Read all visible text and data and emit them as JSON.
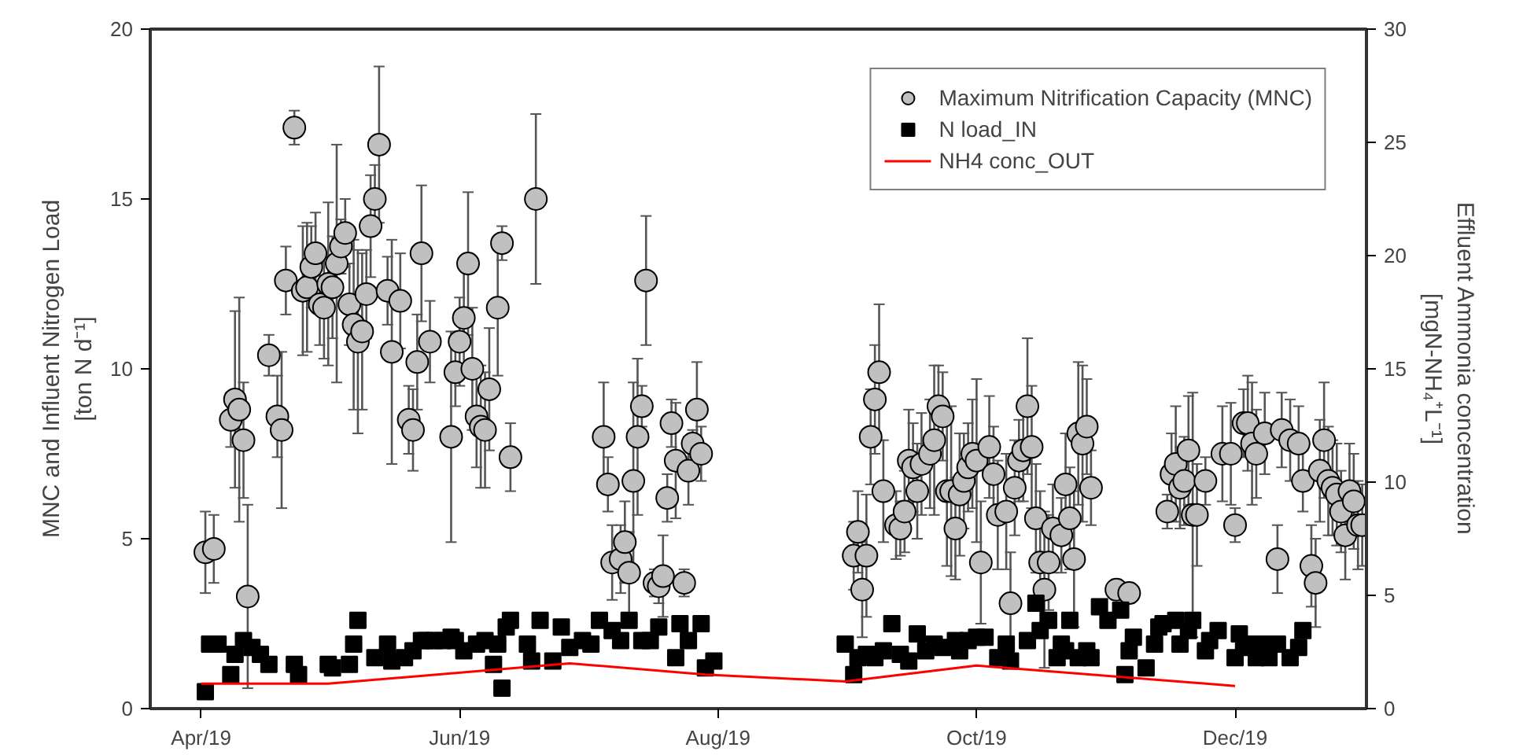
{
  "chart_data": {
    "type": "scatter",
    "ylabel": "MNC and Influent Nitrogen Load\n[ton N d⁻¹]",
    "y2label": "Effluent Ammonia concentration\n[mgN-NH₄⁺L⁻¹]",
    "xlim": [
      "2019-03-20",
      "2020-01-01"
    ],
    "xticks": [
      {
        "value": "2019-04-01",
        "label": "Apr/19"
      },
      {
        "value": "2019-06-01",
        "label": "Jun/19"
      },
      {
        "value": "2019-08-01",
        "label": "Aug/19"
      },
      {
        "value": "2019-10-01",
        "label": "Oct/19"
      },
      {
        "value": "2019-12-01",
        "label": "Dec/19"
      }
    ],
    "ylim": [
      0,
      20
    ],
    "yticks": [
      0,
      5,
      10,
      15,
      20
    ],
    "y2lim": [
      0,
      30
    ],
    "y2ticks": [
      0,
      5,
      10,
      15,
      20,
      25,
      30
    ],
    "grid": false,
    "legend": "top right",
    "series": [
      {
        "name": "Maximum Nitrification Capacity (MNC)",
        "marker": "circle",
        "color": "#c0c0c0",
        "x": [
          "2019-04-02",
          "2019-04-04",
          "2019-04-08",
          "2019-04-09",
          "2019-04-10",
          "2019-04-11",
          "2019-04-12",
          "2019-04-17",
          "2019-04-19",
          "2019-04-20",
          "2019-04-21",
          "2019-04-23",
          "2019-04-25",
          "2019-04-26",
          "2019-04-27",
          "2019-04-28",
          "2019-04-29",
          "2019-04-30",
          "2019-05-01",
          "2019-05-02",
          "2019-05-03",
          "2019-05-04",
          "2019-05-05",
          "2019-05-06",
          "2019-05-07",
          "2019-05-08",
          "2019-05-09",
          "2019-05-10",
          "2019-05-11",
          "2019-05-12",
          "2019-05-13",
          "2019-05-15",
          "2019-05-16",
          "2019-05-18",
          "2019-05-20",
          "2019-05-21",
          "2019-05-22",
          "2019-05-23",
          "2019-05-25",
          "2019-05-30",
          "2019-05-31",
          "2019-06-01",
          "2019-06-02",
          "2019-06-03",
          "2019-06-04",
          "2019-06-05",
          "2019-06-06",
          "2019-06-07",
          "2019-06-08",
          "2019-06-10",
          "2019-06-11",
          "2019-06-13",
          "2019-06-19",
          "2019-07-05",
          "2019-07-06",
          "2019-07-07",
          "2019-07-09",
          "2019-07-10",
          "2019-07-11",
          "2019-07-12",
          "2019-07-13",
          "2019-07-14",
          "2019-07-15",
          "2019-07-17",
          "2019-07-18",
          "2019-07-19",
          "2019-07-20",
          "2019-07-21",
          "2019-07-22",
          "2019-07-24",
          "2019-07-25",
          "2019-07-26",
          "2019-07-27",
          "2019-07-28",
          "2019-09-02",
          "2019-09-03",
          "2019-09-04",
          "2019-09-05",
          "2019-09-06",
          "2019-09-07",
          "2019-09-08",
          "2019-09-09",
          "2019-09-12",
          "2019-09-13",
          "2019-09-14",
          "2019-09-15",
          "2019-09-16",
          "2019-09-17",
          "2019-09-18",
          "2019-09-20",
          "2019-09-21",
          "2019-09-22",
          "2019-09-23",
          "2019-09-24",
          "2019-09-25",
          "2019-09-26",
          "2019-09-27",
          "2019-09-28",
          "2019-09-29",
          "2019-09-30",
          "2019-10-01",
          "2019-10-02",
          "2019-10-04",
          "2019-10-05",
          "2019-10-06",
          "2019-10-08",
          "2019-10-09",
          "2019-10-10",
          "2019-10-11",
          "2019-10-12",
          "2019-10-13",
          "2019-10-14",
          "2019-10-15",
          "2019-10-16",
          "2019-10-17",
          "2019-10-18",
          "2019-10-19",
          "2019-10-21",
          "2019-10-22",
          "2019-10-23",
          "2019-10-24",
          "2019-10-25",
          "2019-10-26",
          "2019-10-27",
          "2019-10-28",
          "2019-11-03",
          "2019-11-06",
          "2019-11-15",
          "2019-11-16",
          "2019-11-17",
          "2019-11-18",
          "2019-11-19",
          "2019-11-20",
          "2019-11-21",
          "2019-11-22",
          "2019-11-24",
          "2019-11-28",
          "2019-11-30",
          "2019-12-01",
          "2019-12-03",
          "2019-12-04",
          "2019-12-05",
          "2019-12-06",
          "2019-12-08",
          "2019-12-11",
          "2019-12-12",
          "2019-12-14",
          "2019-12-16",
          "2019-12-17",
          "2019-12-19",
          "2019-12-20",
          "2019-12-21",
          "2019-12-22",
          "2019-12-23",
          "2019-12-24",
          "2019-12-25",
          "2019-12-26",
          "2019-12-27",
          "2019-12-28",
          "2019-12-29",
          "2019-12-30",
          "2019-12-31"
        ],
        "values": [
          4.6,
          4.7,
          8.5,
          9.1,
          8.8,
          7.9,
          3.3,
          10.4,
          8.6,
          8.2,
          12.6,
          17.1,
          12.3,
          12.4,
          13.0,
          13.4,
          11.9,
          11.8,
          12.5,
          12.4,
          13.1,
          13.6,
          14.0,
          11.9,
          11.3,
          10.8,
          11.1,
          12.2,
          14.2,
          15.0,
          16.6,
          12.3,
          10.5,
          12.0,
          8.5,
          8.2,
          10.2,
          13.4,
          10.8,
          8.0,
          9.9,
          10.8,
          11.5,
          13.1,
          10.0,
          8.6,
          8.3,
          8.2,
          9.4,
          11.8,
          13.7,
          7.4,
          15.0,
          8.0,
          6.6,
          4.3,
          4.4,
          4.9,
          4.0,
          6.7,
          8.0,
          8.9,
          12.6,
          3.7,
          3.6,
          3.9,
          6.2,
          8.4,
          7.3,
          3.7,
          7.0,
          7.8,
          8.8,
          7.5,
          4.5,
          5.2,
          3.5,
          4.5,
          8.0,
          9.1,
          9.9,
          6.4,
          5.4,
          5.3,
          5.8,
          7.3,
          7.1,
          6.4,
          7.2,
          7.5,
          7.9,
          8.9,
          8.6,
          6.4,
          6.4,
          5.3,
          6.3,
          6.7,
          7.1,
          7.5,
          7.3,
          4.3,
          7.7,
          6.9,
          5.7,
          5.8,
          3.1,
          6.5,
          7.3,
          7.6,
          8.9,
          7.7,
          5.6,
          4.3,
          3.5,
          4.3,
          5.3,
          5.1,
          6.6,
          5.6,
          4.4,
          8.1,
          7.8,
          8.3,
          6.5,
          3.5,
          3.4,
          5.8,
          6.9,
          7.2,
          6.5,
          6.7,
          7.6,
          5.7,
          5.7,
          6.7,
          7.5,
          7.5,
          5.4,
          8.4,
          8.4,
          7.8,
          7.5,
          8.1,
          4.4,
          8.2,
          7.9,
          7.8,
          6.7,
          4.2,
          3.7,
          7.0,
          7.9,
          6.7,
          6.5,
          6.3,
          5.8,
          5.1,
          6.4,
          6.1,
          5.4,
          5.4
        ],
        "errors": [
          1.2,
          1.0,
          0.8,
          2.6,
          3.3,
          1.7,
          2.7,
          0.6,
          1.2,
          2.3,
          1.0,
          0.5,
          1.9,
          1.9,
          1.2,
          1.2,
          1.2,
          1.5,
          2.4,
          1.5,
          3.5,
          0.8,
          1.0,
          1.2,
          2.5,
          2.7,
          2.3,
          1.3,
          1.5,
          1.0,
          2.3,
          1.0,
          3.3,
          1.4,
          1.0,
          1.2,
          1.4,
          2.0,
          1.2,
          3.1,
          1.0,
          1.3,
          1.5,
          2.1,
          1.8,
          1.5,
          1.8,
          1.7,
          1.8,
          2.0,
          0.5,
          1.0,
          2.5,
          1.6,
          0.8,
          1.1,
          1.0,
          1.2,
          1.2,
          2.9,
          2.3,
          0.6,
          1.9,
          0.4,
          0.5,
          1.2,
          0.7,
          0.7,
          1.7,
          0.4,
          1.0,
          0.4,
          1.4,
          0.8,
          1.0,
          1.2,
          1.4,
          1.8,
          1.4,
          1.6,
          2.0,
          1.5,
          1.0,
          0.8,
          1.2,
          1.5,
          1.3,
          1.4,
          1.5,
          1.6,
          2.2,
          1.2,
          1.3,
          2.2,
          2.5,
          1.5,
          1.8,
          1.4,
          1.3,
          1.6,
          2.4,
          1.8,
          1.5,
          1.4,
          1.6,
          1.7,
          1.5,
          1.4,
          1.2,
          1.5,
          2.0,
          1.8,
          1.6,
          2.1,
          2.3,
          1.4,
          1.3,
          1.1,
          1.5,
          1.5,
          2.0,
          2.1,
          2.3,
          1.4,
          1.1,
          0.3,
          0.3,
          0.5,
          1.2,
          1.7,
          1.2,
          1.3,
          1.6,
          3.6,
          1.5,
          0.7,
          1.4,
          1.5,
          0.5,
          1.0,
          1.4,
          1.8,
          1.3,
          1.2,
          1.0,
          1.1,
          1.2,
          1.1,
          0.9,
          1.2,
          1.3,
          1.5,
          1.7,
          1.6,
          1.4,
          1.5,
          1.2,
          1.3,
          1.4,
          1.4,
          1.3,
          1.2
        ]
      },
      {
        "name": "N load_IN",
        "marker": "square",
        "color": "#000000",
        "x": [
          "2019-04-02",
          "2019-04-03",
          "2019-04-05",
          "2019-04-08",
          "2019-04-09",
          "2019-04-11",
          "2019-04-13",
          "2019-04-15",
          "2019-04-17",
          "2019-04-23",
          "2019-04-24",
          "2019-05-01",
          "2019-05-02",
          "2019-05-06",
          "2019-05-07",
          "2019-05-08",
          "2019-05-12",
          "2019-05-15",
          "2019-05-16",
          "2019-05-19",
          "2019-05-21",
          "2019-05-23",
          "2019-05-24",
          "2019-05-26",
          "2019-05-28",
          "2019-05-30",
          "2019-05-31",
          "2019-06-02",
          "2019-06-05",
          "2019-06-07",
          "2019-06-09",
          "2019-06-10",
          "2019-06-11",
          "2019-06-12",
          "2019-06-13",
          "2019-06-17",
          "2019-06-18",
          "2019-06-20",
          "2019-06-23",
          "2019-06-25",
          "2019-06-27",
          "2019-06-30",
          "2019-07-02",
          "2019-07-04",
          "2019-07-07",
          "2019-07-09",
          "2019-07-11",
          "2019-07-14",
          "2019-07-16",
          "2019-07-18",
          "2019-07-22",
          "2019-07-23",
          "2019-07-25",
          "2019-07-28",
          "2019-07-29",
          "2019-07-31",
          "2019-08-31",
          "2019-09-02",
          "2019-09-03",
          "2019-09-05",
          "2019-09-07",
          "2019-09-09",
          "2019-09-11",
          "2019-09-13",
          "2019-09-15",
          "2019-09-17",
          "2019-09-19",
          "2019-09-21",
          "2019-09-23",
          "2019-09-26",
          "2019-09-27",
          "2019-09-29",
          "2019-10-01",
          "2019-10-03",
          "2019-10-06",
          "2019-10-08",
          "2019-10-09",
          "2019-10-13",
          "2019-10-15",
          "2019-10-16",
          "2019-10-18",
          "2019-10-20",
          "2019-10-21",
          "2019-10-22",
          "2019-10-23",
          "2019-10-25",
          "2019-10-27",
          "2019-10-28",
          "2019-10-30",
          "2019-11-01",
          "2019-11-04",
          "2019-11-05",
          "2019-11-06",
          "2019-11-07",
          "2019-11-10",
          "2019-11-12",
          "2019-11-13",
          "2019-11-14",
          "2019-11-17",
          "2019-11-18",
          "2019-11-20",
          "2019-11-21",
          "2019-11-24",
          "2019-11-25",
          "2019-11-27",
          "2019-12-01",
          "2019-12-02",
          "2019-12-03",
          "2019-12-05",
          "2019-12-06",
          "2019-12-08",
          "2019-12-09",
          "2019-12-11",
          "2019-12-14",
          "2019-12-16",
          "2019-12-17"
        ],
        "values": [
          0.5,
          1.9,
          1.9,
          1.0,
          1.6,
          2.0,
          1.8,
          1.6,
          1.3,
          1.3,
          1.0,
          1.3,
          1.2,
          1.3,
          1.9,
          2.6,
          1.5,
          1.9,
          1.4,
          1.5,
          1.7,
          2.0,
          2.0,
          2.0,
          2.0,
          2.1,
          2.0,
          1.7,
          1.9,
          2.0,
          1.3,
          1.9,
          0.6,
          2.4,
          2.6,
          1.9,
          1.4,
          2.6,
          1.4,
          2.4,
          1.8,
          2.0,
          1.9,
          2.6,
          2.3,
          2.0,
          2.6,
          2.0,
          2.0,
          2.4,
          1.5,
          2.5,
          2.0,
          2.5,
          1.2,
          1.4,
          1.9,
          1.0,
          1.5,
          1.6,
          1.5,
          1.7,
          2.5,
          1.6,
          1.4,
          2.2,
          1.7,
          1.9,
          1.8,
          2.0,
          1.7,
          2.0,
          2.1,
          2.1,
          1.5,
          1.9,
          1.4,
          2.0,
          3.1,
          2.3,
          2.6,
          1.5,
          1.9,
          1.7,
          2.6,
          1.5,
          1.7,
          1.5,
          3.0,
          2.6,
          2.9,
          1.0,
          1.7,
          2.1,
          1.2,
          1.9,
          2.4,
          2.5,
          2.6,
          1.9,
          2.3,
          2.6,
          1.7,
          2.0,
          2.3,
          1.5,
          2.2,
          1.8,
          1.9,
          1.5,
          1.9,
          1.5,
          1.9,
          1.5,
          1.8,
          2.3
        ]
      },
      {
        "name": "NH4 conc_OUT",
        "type": "line",
        "axis": "y2",
        "color": "#ff0000",
        "line_style": "solid",
        "marker": "none",
        "x": [
          "2019-04-01",
          "2019-05-01",
          "2019-06-27",
          "2019-07-29",
          "2019-08-31",
          "2019-10-01",
          "2019-12-01"
        ],
        "values": [
          1.1,
          1.1,
          2.0,
          1.5,
          1.2,
          1.9,
          1.0
        ]
      }
    ]
  }
}
